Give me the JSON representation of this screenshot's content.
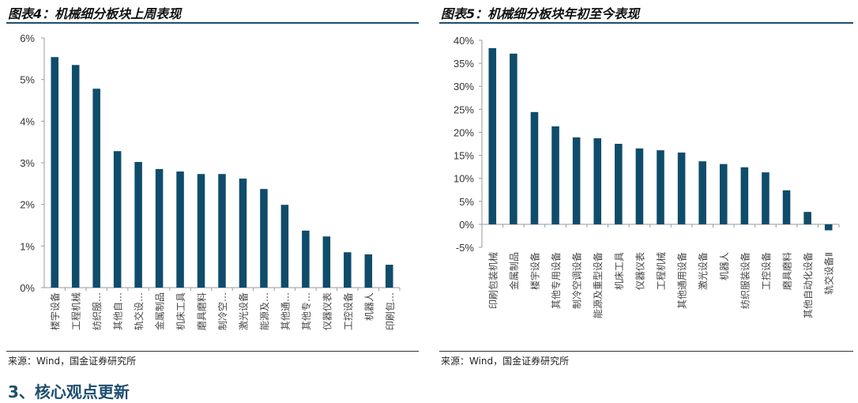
{
  "section_heading": "3、核心观点更新",
  "chart_data": [
    {
      "type": "bar",
      "title": "图表4：机械细分板块上周表现",
      "source": "来源：Wind，国金证券研究所",
      "categories": [
        "楼宇设备",
        "工程机械",
        "纺织服…",
        "其他自…",
        "轨交设…",
        "金属制品",
        "机床工具",
        "磨具磨料",
        "制冷空…",
        "激光设备",
        "能源及…",
        "其他通…",
        "其他专…",
        "仪器仪表",
        "工控设备",
        "机器人",
        "印刷包…"
      ],
      "values": [
        5.54,
        5.35,
        4.78,
        3.28,
        3.02,
        2.85,
        2.79,
        2.73,
        2.73,
        2.62,
        2.37,
        1.99,
        1.37,
        1.23,
        0.85,
        0.8,
        0.55
      ],
      "ylim": [
        0,
        6
      ],
      "yticks": [
        "0%",
        "1%",
        "2%",
        "3%",
        "4%",
        "5%",
        "6%"
      ],
      "unit": "%",
      "bar_color": "#0f4c6b",
      "grid": false
    },
    {
      "type": "bar",
      "title": "图表5：机械细分板块年初至今表现",
      "source": "来源：Wind，国金证券研究所",
      "categories": [
        "印刷包装机械",
        "金属制品",
        "楼宇设备",
        "其他专用设备",
        "制冷空调设备",
        "能源及重型设备",
        "机床工具",
        "仪器仪表",
        "工程机械",
        "其他通用设备",
        "激光设备",
        "机器人",
        "纺织服装设备",
        "工控设备",
        "磨具磨料",
        "其他自动化设备",
        "轨交设备Ⅱ"
      ],
      "values": [
        38.3,
        37.1,
        24.4,
        21.3,
        18.9,
        18.7,
        17.5,
        16.5,
        16.1,
        15.6,
        13.7,
        13.1,
        12.4,
        11.3,
        7.4,
        2.7,
        -1.3
      ],
      "ylim": [
        -5,
        40
      ],
      "yticks": [
        "-5%",
        "0%",
        "5%",
        "10%",
        "15%",
        "20%",
        "25%",
        "30%",
        "35%",
        "40%"
      ],
      "unit": "%",
      "bar_color": "#0f4c6b",
      "grid": false
    }
  ]
}
